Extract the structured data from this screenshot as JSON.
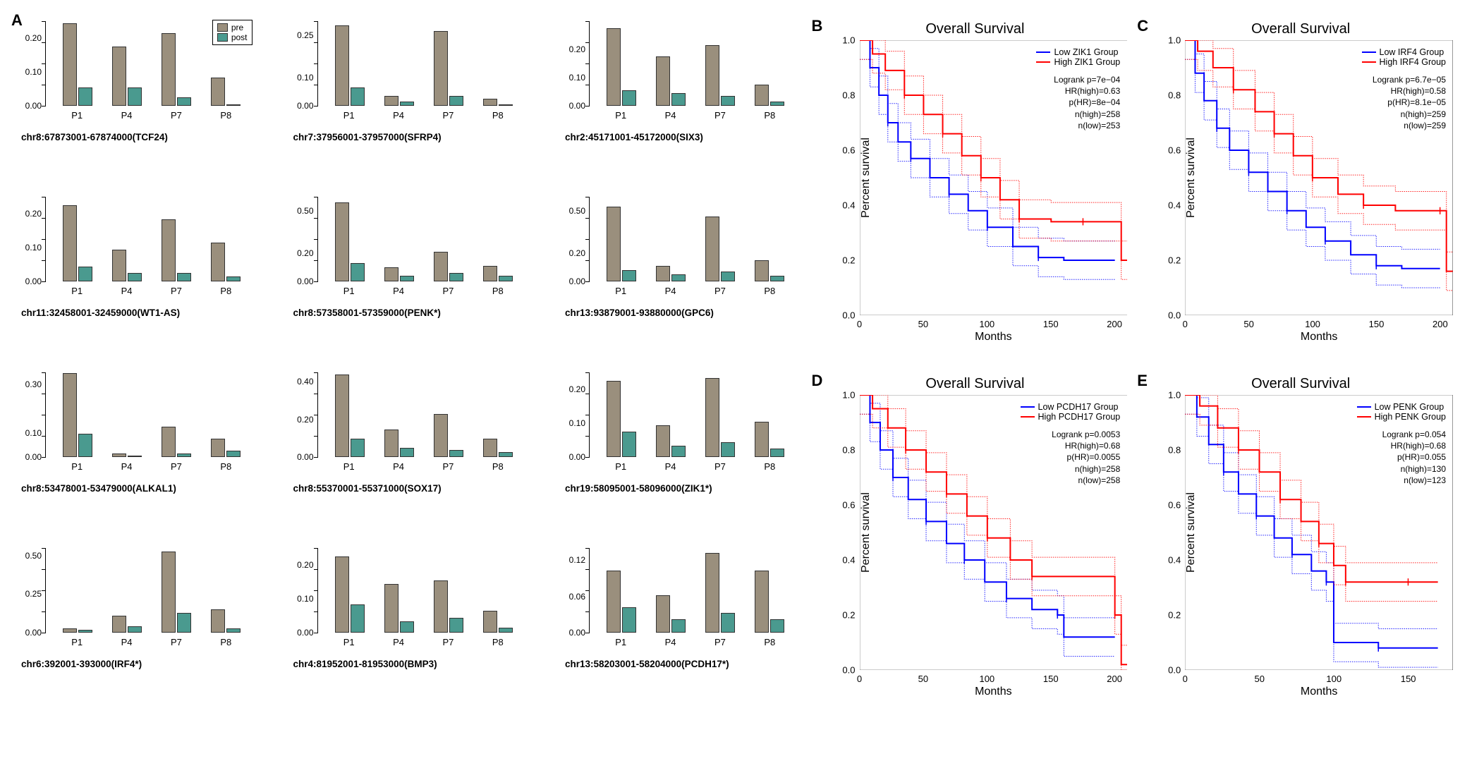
{
  "palette": {
    "pre": "#9a8f7d",
    "post": "#4a9a8f",
    "low": "#0000ff",
    "high": "#ff0000",
    "axis": "#000000",
    "background": "#ffffff"
  },
  "panelA": {
    "label": "A",
    "categories": [
      "P1",
      "P4",
      "P7",
      "P8"
    ],
    "legend": {
      "pre": "pre",
      "post": "post"
    },
    "charts": [
      {
        "title": "chr8:67873001-67874000(TCF24)",
        "ymax": 0.25,
        "yticks": [
          0.0,
          0.1,
          0.2
        ],
        "pre": [
          0.24,
          0.17,
          0.21,
          0.08
        ],
        "post": [
          0.05,
          0.05,
          0.02,
          0.0
        ]
      },
      {
        "title": "chr7:37956001-37957000(SFRP4)",
        "ymax": 0.3,
        "yticks": [
          0.0,
          0.1,
          0.25
        ],
        "pre": [
          0.28,
          0.03,
          0.26,
          0.02
        ],
        "post": [
          0.06,
          0.01,
          0.03,
          0.0
        ]
      },
      {
        "title": "chr2:45171001-45172000(SIX3)",
        "ymax": 0.3,
        "yticks": [
          0.0,
          0.1,
          0.2
        ],
        "pre": [
          0.27,
          0.17,
          0.21,
          0.07
        ],
        "post": [
          0.05,
          0.04,
          0.03,
          0.01
        ]
      },
      {
        "title": "chr11:32458001-32459000(WT1-AS)",
        "ymax": 0.25,
        "yticks": [
          0.0,
          0.1,
          0.2
        ],
        "pre": [
          0.22,
          0.09,
          0.18,
          0.11
        ],
        "post": [
          0.04,
          0.02,
          0.02,
          0.01
        ]
      },
      {
        "title": "chr8:57358001-57359000(PENK*)",
        "ymax": 0.6,
        "yticks": [
          0.0,
          0.2,
          0.5
        ],
        "pre": [
          0.55,
          0.09,
          0.2,
          0.1
        ],
        "post": [
          0.12,
          0.03,
          0.05,
          0.03
        ]
      },
      {
        "title": "chr13:93879001-93880000(GPC6)",
        "ymax": 0.6,
        "yticks": [
          0.0,
          0.2,
          0.5
        ],
        "pre": [
          0.52,
          0.1,
          0.45,
          0.14
        ],
        "post": [
          0.07,
          0.04,
          0.06,
          0.03
        ]
      },
      {
        "title": "chr8:53478001-53479000(ALKAL1)",
        "ymax": 0.35,
        "yticks": [
          0.0,
          0.1,
          0.3
        ],
        "pre": [
          0.34,
          0.01,
          0.12,
          0.07
        ],
        "post": [
          0.09,
          0.0,
          0.01,
          0.02
        ]
      },
      {
        "title": "chr8:55370001-55371000(SOX17)",
        "ymax": 0.45,
        "yticks": [
          0.0,
          0.2,
          0.4
        ],
        "pre": [
          0.43,
          0.14,
          0.22,
          0.09
        ],
        "post": [
          0.09,
          0.04,
          0.03,
          0.02
        ]
      },
      {
        "title": "chr19:58095001-58096000(ZIK1*)",
        "ymax": 0.25,
        "yticks": [
          0.0,
          0.1,
          0.2
        ],
        "pre": [
          0.22,
          0.09,
          0.23,
          0.1
        ],
        "post": [
          0.07,
          0.03,
          0.04,
          0.02
        ]
      },
      {
        "title": "chr6:392001-393000(IRF4*)",
        "ymax": 0.55,
        "yticks": [
          0.0,
          0.25,
          0.5
        ],
        "pre": [
          0.02,
          0.1,
          0.52,
          0.14
        ],
        "post": [
          0.01,
          0.03,
          0.12,
          0.02
        ]
      },
      {
        "title": "chr4:81952001-81953000(BMP3)",
        "ymax": 0.25,
        "yticks": [
          0.0,
          0.1,
          0.2
        ],
        "pre": [
          0.22,
          0.14,
          0.15,
          0.06
        ],
        "post": [
          0.08,
          0.03,
          0.04,
          0.01
        ]
      },
      {
        "title": "chr13:58203001-58204000(PCDH17*)",
        "ymax": 0.14,
        "yticks": [
          0.0,
          0.06,
          0.12
        ],
        "pre": [
          0.1,
          0.06,
          0.13,
          0.1
        ],
        "post": [
          0.04,
          0.02,
          0.03,
          0.02
        ]
      }
    ]
  },
  "km": {
    "ylabel": "Percent survival",
    "xlabel": "Months",
    "yticks": [
      0.0,
      0.2,
      0.4,
      0.6,
      0.8,
      1.0
    ],
    "panels": [
      {
        "label": "B",
        "title": "Overall Survival",
        "gene": "ZIK1",
        "xmax": 210,
        "xticks": [
          0,
          50,
          100,
          150,
          200
        ],
        "stats": [
          "Logrank p=7e−04",
          "HR(high)=0.63",
          "p(HR)=8e−04",
          "n(high)=258",
          "n(low)=253"
        ],
        "low": [
          [
            0,
            1.0
          ],
          [
            8,
            0.9
          ],
          [
            15,
            0.8
          ],
          [
            22,
            0.7
          ],
          [
            30,
            0.63
          ],
          [
            40,
            0.57
          ],
          [
            55,
            0.5
          ],
          [
            70,
            0.44
          ],
          [
            85,
            0.38
          ],
          [
            100,
            0.32
          ],
          [
            120,
            0.25
          ],
          [
            140,
            0.21
          ],
          [
            160,
            0.2
          ],
          [
            200,
            0.2
          ]
        ],
        "high": [
          [
            0,
            1.0
          ],
          [
            10,
            0.95
          ],
          [
            20,
            0.89
          ],
          [
            35,
            0.8
          ],
          [
            50,
            0.73
          ],
          [
            65,
            0.66
          ],
          [
            80,
            0.58
          ],
          [
            95,
            0.5
          ],
          [
            110,
            0.42
          ],
          [
            125,
            0.35
          ],
          [
            150,
            0.34
          ],
          [
            175,
            0.34
          ],
          [
            205,
            0.2
          ],
          [
            210,
            0.2
          ]
        ]
      },
      {
        "label": "C",
        "title": "Overall Survival",
        "gene": "IRF4",
        "xmax": 210,
        "xticks": [
          0,
          50,
          100,
          150,
          200
        ],
        "stats": [
          "Logrank p=6.7e−05",
          "HR(high)=0.58",
          "p(HR)=8.1e−05",
          "n(high)=259",
          "n(low)=259"
        ],
        "low": [
          [
            0,
            1.0
          ],
          [
            8,
            0.88
          ],
          [
            15,
            0.78
          ],
          [
            25,
            0.68
          ],
          [
            35,
            0.6
          ],
          [
            50,
            0.52
          ],
          [
            65,
            0.45
          ],
          [
            80,
            0.38
          ],
          [
            95,
            0.32
          ],
          [
            110,
            0.27
          ],
          [
            130,
            0.22
          ],
          [
            150,
            0.18
          ],
          [
            170,
            0.17
          ],
          [
            200,
            0.17
          ]
        ],
        "high": [
          [
            0,
            1.0
          ],
          [
            10,
            0.96
          ],
          [
            22,
            0.9
          ],
          [
            38,
            0.82
          ],
          [
            55,
            0.74
          ],
          [
            70,
            0.66
          ],
          [
            85,
            0.58
          ],
          [
            100,
            0.5
          ],
          [
            120,
            0.44
          ],
          [
            140,
            0.4
          ],
          [
            165,
            0.38
          ],
          [
            200,
            0.38
          ],
          [
            205,
            0.16
          ],
          [
            210,
            0.16
          ]
        ]
      },
      {
        "label": "D",
        "title": "Overall Survival",
        "gene": "PCDH17",
        "xmax": 210,
        "xticks": [
          0,
          50,
          100,
          150,
          200
        ],
        "stats": [
          "Logrank p=0.0053",
          "HR(high)=0.68",
          "p(HR)=0.0055",
          "n(high)=258",
          "n(low)=258"
        ],
        "low": [
          [
            0,
            1.0
          ],
          [
            8,
            0.9
          ],
          [
            16,
            0.8
          ],
          [
            26,
            0.7
          ],
          [
            38,
            0.62
          ],
          [
            52,
            0.54
          ],
          [
            68,
            0.46
          ],
          [
            82,
            0.4
          ],
          [
            98,
            0.32
          ],
          [
            115,
            0.26
          ],
          [
            135,
            0.22
          ],
          [
            155,
            0.2
          ],
          [
            160,
            0.12
          ],
          [
            200,
            0.12
          ]
        ],
        "high": [
          [
            0,
            1.0
          ],
          [
            10,
            0.95
          ],
          [
            22,
            0.88
          ],
          [
            36,
            0.8
          ],
          [
            52,
            0.72
          ],
          [
            68,
            0.64
          ],
          [
            84,
            0.56
          ],
          [
            100,
            0.48
          ],
          [
            118,
            0.4
          ],
          [
            135,
            0.34
          ],
          [
            160,
            0.34
          ],
          [
            200,
            0.2
          ],
          [
            205,
            0.02
          ],
          [
            210,
            0.02
          ]
        ]
      },
      {
        "label": "E",
        "title": "Overall Survival",
        "gene": "PENK",
        "xmax": 180,
        "xticks": [
          0,
          50,
          100,
          150
        ],
        "stats": [
          "Logrank p=0.054",
          "HR(high)=0.68",
          "p(HR)=0.055",
          "n(high)=130",
          "n(low)=123"
        ],
        "low": [
          [
            0,
            1.0
          ],
          [
            8,
            0.92
          ],
          [
            16,
            0.82
          ],
          [
            26,
            0.72
          ],
          [
            36,
            0.64
          ],
          [
            48,
            0.56
          ],
          [
            60,
            0.48
          ],
          [
            72,
            0.42
          ],
          [
            85,
            0.36
          ],
          [
            95,
            0.32
          ],
          [
            100,
            0.1
          ],
          [
            130,
            0.08
          ],
          [
            170,
            0.08
          ]
        ],
        "high": [
          [
            0,
            1.0
          ],
          [
            10,
            0.96
          ],
          [
            22,
            0.88
          ],
          [
            36,
            0.8
          ],
          [
            50,
            0.72
          ],
          [
            64,
            0.62
          ],
          [
            78,
            0.54
          ],
          [
            90,
            0.46
          ],
          [
            100,
            0.38
          ],
          [
            108,
            0.32
          ],
          [
            130,
            0.32
          ],
          [
            150,
            0.32
          ],
          [
            170,
            0.32
          ]
        ]
      }
    ]
  }
}
